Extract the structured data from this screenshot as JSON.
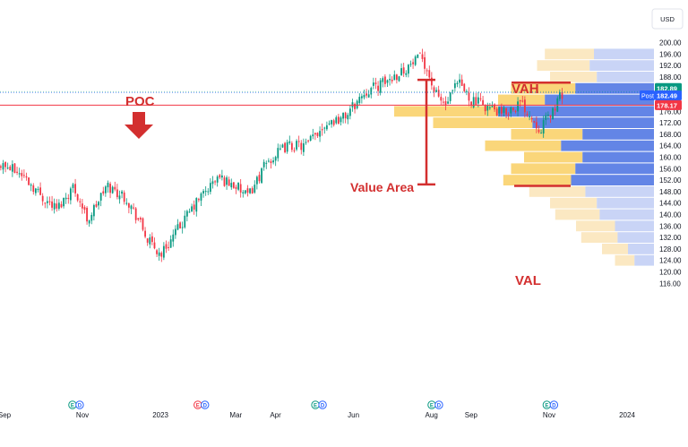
{
  "chart_data": {
    "type": "candlestick_volume_profile",
    "currency_label": "USD",
    "y_axis": {
      "ylim": [
        114,
        202
      ],
      "tick_labels": [
        "200.00",
        "196.00",
        "192.00",
        "188.00",
        "184.00",
        "180.00",
        "176.00",
        "172.00",
        "168.00",
        "164.00",
        "160.00",
        "156.00",
        "152.00",
        "148.00",
        "144.00",
        "140.00",
        "136.00",
        "132.00",
        "128.00",
        "124.00",
        "120.00",
        "116.00"
      ]
    },
    "x_axis": {
      "tick_labels": [
        {
          "label": "Sep",
          "date": "2022-09-01"
        },
        {
          "label": "Nov",
          "date": "2022-11-01"
        },
        {
          "label": "2023",
          "date": "2023-01-01"
        },
        {
          "label": "Mar",
          "date": "2023-03-01"
        },
        {
          "label": "Apr",
          "date": "2023-04-01"
        },
        {
          "label": "Jun",
          "date": "2023-06-01"
        },
        {
          "label": "Aug",
          "date": "2023-08-01"
        },
        {
          "label": "Sep",
          "date": "2023-09-01"
        },
        {
          "label": "Nov",
          "date": "2023-11-01"
        },
        {
          "label": "2024",
          "date": "2024-01-01"
        }
      ]
    },
    "price_path": [
      [
        "2022-08-20",
        160
      ],
      [
        "2022-09-01",
        157
      ],
      [
        "2022-09-15",
        154
      ],
      [
        "2022-10-01",
        146
      ],
      [
        "2022-10-12",
        142
      ],
      [
        "2022-10-25",
        150
      ],
      [
        "2022-11-05",
        138
      ],
      [
        "2022-11-20",
        150
      ],
      [
        "2022-12-05",
        146
      ],
      [
        "2022-12-15",
        138
      ],
      [
        "2022-12-22",
        131
      ],
      [
        "2023-01-01",
        126
      ],
      [
        "2023-01-15",
        135
      ],
      [
        "2023-02-01",
        146
      ],
      [
        "2023-02-15",
        153
      ],
      [
        "2023-03-01",
        150
      ],
      [
        "2023-03-10",
        146
      ],
      [
        "2023-03-25",
        158
      ],
      [
        "2023-04-10",
        164
      ],
      [
        "2023-04-25",
        164
      ],
      [
        "2023-05-10",
        172
      ],
      [
        "2023-05-25",
        174
      ],
      [
        "2023-06-10",
        183
      ],
      [
        "2023-06-25",
        186
      ],
      [
        "2023-07-15",
        192
      ],
      [
        "2023-07-25",
        195
      ],
      [
        "2023-08-04",
        182
      ],
      [
        "2023-08-12",
        178
      ],
      [
        "2023-08-22",
        186
      ],
      [
        "2023-09-01",
        180
      ],
      [
        "2023-09-12",
        178
      ],
      [
        "2023-09-25",
        175
      ],
      [
        "2023-10-10",
        179
      ],
      [
        "2023-10-25",
        170
      ],
      [
        "2023-11-05",
        177
      ],
      [
        "2023-11-12",
        183
      ]
    ],
    "volume_profile": {
      "rows": [
        {
          "price": 196,
          "total": 0.42,
          "up_share": 0.45
        },
        {
          "price": 192,
          "total": 0.45,
          "up_share": 0.45
        },
        {
          "price": 188,
          "total": 0.4,
          "up_share": 0.45
        },
        {
          "price": 184,
          "total": 0.55,
          "up_share": 0.45
        },
        {
          "price": 180,
          "total": 0.6,
          "up_share": 0.3
        },
        {
          "price": 176,
          "total": 1.0,
          "up_share": 0.4
        },
        {
          "price": 172,
          "total": 0.85,
          "up_share": 0.45
        },
        {
          "price": 168,
          "total": 0.55,
          "up_share": 0.5
        },
        {
          "price": 164,
          "total": 0.65,
          "up_share": 0.45
        },
        {
          "price": 160,
          "total": 0.5,
          "up_share": 0.45
        },
        {
          "price": 156,
          "total": 0.55,
          "up_share": 0.45
        },
        {
          "price": 152,
          "total": 0.58,
          "up_share": 0.45
        },
        {
          "price": 148,
          "total": 0.48,
          "up_share": 0.45
        },
        {
          "price": 144,
          "total": 0.4,
          "up_share": 0.45
        },
        {
          "price": 140,
          "total": 0.38,
          "up_share": 0.45
        },
        {
          "price": 136,
          "total": 0.3,
          "up_share": 0.5
        },
        {
          "price": 132,
          "total": 0.28,
          "up_share": 0.5
        },
        {
          "price": 128,
          "total": 0.2,
          "up_share": 0.5
        },
        {
          "price": 124,
          "total": 0.15,
          "up_share": 0.5
        }
      ],
      "value_area": [
        150,
        186
      ],
      "poc": 178.17
    },
    "price_labels": [
      {
        "text": "182.89",
        "price": 182.89,
        "color": "#089981"
      },
      {
        "text": "182.49",
        "price": 182.49,
        "color": "#2962ff",
        "prefix": "Post"
      },
      {
        "text": "178.17",
        "price": 178.17,
        "color": "#f23645"
      }
    ],
    "annotations": {
      "poc_label": "POC",
      "vah_label": "VAH",
      "val_label": "VAL",
      "value_area_label": "Value Area"
    },
    "events": [
      {
        "date": "2022-10-27",
        "letters": [
          "E",
          "D"
        ],
        "color": "#089981"
      },
      {
        "date": "2023-02-02",
        "letters": [
          "E",
          "D"
        ],
        "color": "#f23645"
      },
      {
        "date": "2023-05-05",
        "letters": [
          "E",
          "D"
        ],
        "color": "#089981"
      },
      {
        "date": "2023-08-04",
        "letters": [
          "E",
          "D"
        ],
        "color": "#089981"
      },
      {
        "date": "2023-11-02",
        "letters": [
          "E",
          "D"
        ],
        "color": "#089981"
      }
    ],
    "colors": {
      "up": "#089981",
      "down": "#f23645",
      "annotation": "#d32f2f",
      "vp_up_va": "#f9d16c",
      "vp_down_va": "#5b7ee5",
      "vp_up_out": "#fbe8c2",
      "vp_down_out": "#c9d4f6"
    }
  }
}
